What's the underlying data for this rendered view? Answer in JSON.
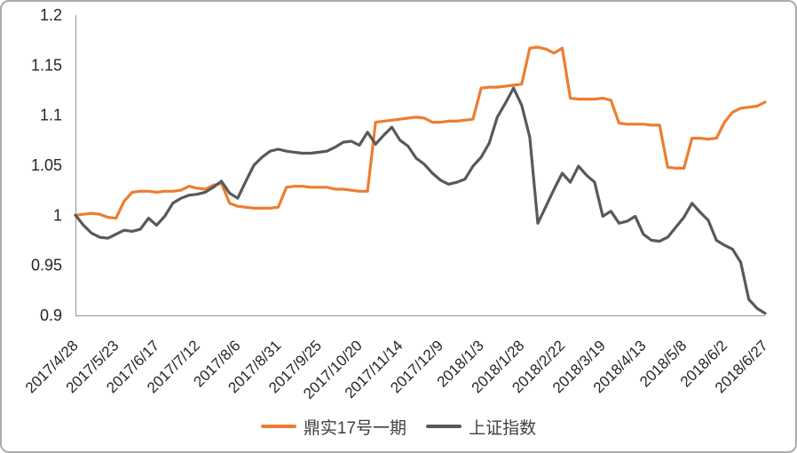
{
  "chart_data": {
    "type": "line",
    "title": "",
    "grid": false,
    "legend_position": "bottom",
    "ylim": [
      0.9,
      1.2
    ],
    "y_ticks": [
      {
        "label": "1.2",
        "value": 1.2
      },
      {
        "label": "1.15",
        "value": 1.15
      },
      {
        "label": "1.1",
        "value": 1.1
      },
      {
        "label": "1.05",
        "value": 1.05
      },
      {
        "label": "1",
        "value": 1.0
      },
      {
        "label": "0.95",
        "value": 0.95
      },
      {
        "label": "0.9",
        "value": 0.9
      }
    ],
    "x_tick_labels": [
      "2017/4/28",
      "2017/5/23",
      "2017/6/17",
      "2017/7/12",
      "2017/8/6",
      "2017/8/31",
      "2017/9/25",
      "2017/10/20",
      "2017/11/14",
      "2017/12/9",
      "2018/1/3",
      "2018/1/28",
      "2018/2/22",
      "2018/3/19",
      "2018/4/13",
      "2018/5/8",
      "2018/6/2",
      "2018/6/27"
    ],
    "points_per_tick_interval": 5,
    "series": [
      {
        "name": "鼎实17号一期",
        "color": "#ED7D31",
        "values": [
          1.0,
          1.001,
          1.002,
          1.001,
          0.998,
          0.997,
          1.014,
          1.023,
          1.024,
          1.024,
          1.023,
          1.024,
          1.024,
          1.025,
          1.029,
          1.027,
          1.026,
          1.03,
          1.032,
          1.012,
          1.009,
          1.008,
          1.007,
          1.007,
          1.007,
          1.008,
          1.028,
          1.029,
          1.029,
          1.028,
          1.028,
          1.028,
          1.026,
          1.026,
          1.025,
          1.024,
          1.024,
          1.093,
          1.094,
          1.095,
          1.096,
          1.097,
          1.098,
          1.097,
          1.093,
          1.093,
          1.094,
          1.094,
          1.095,
          1.096,
          1.127,
          1.128,
          1.128,
          1.129,
          1.13,
          1.131,
          1.167,
          1.168,
          1.166,
          1.162,
          1.167,
          1.117,
          1.116,
          1.116,
          1.116,
          1.117,
          1.115,
          1.092,
          1.091,
          1.091,
          1.091,
          1.09,
          1.09,
          1.048,
          1.047,
          1.047,
          1.077,
          1.077,
          1.076,
          1.077,
          1.093,
          1.103,
          1.107,
          1.108,
          1.109,
          1.113
        ]
      },
      {
        "name": "上证指数",
        "color": "#595959",
        "values": [
          1.0,
          0.99,
          0.982,
          0.978,
          0.977,
          0.981,
          0.985,
          0.984,
          0.986,
          0.997,
          0.99,
          0.999,
          1.012,
          1.017,
          1.02,
          1.021,
          1.023,
          1.028,
          1.034,
          1.022,
          1.017,
          1.034,
          1.05,
          1.058,
          1.064,
          1.066,
          1.064,
          1.063,
          1.062,
          1.062,
          1.063,
          1.064,
          1.068,
          1.073,
          1.074,
          1.07,
          1.083,
          1.071,
          1.08,
          1.088,
          1.075,
          1.069,
          1.057,
          1.051,
          1.042,
          1.035,
          1.031,
          1.033,
          1.036,
          1.049,
          1.058,
          1.072,
          1.098,
          1.112,
          1.127,
          1.11,
          1.078,
          0.992,
          1.009,
          1.026,
          1.042,
          1.033,
          1.049,
          1.04,
          1.033,
          0.999,
          1.004,
          0.992,
          0.994,
          0.999,
          0.981,
          0.975,
          0.974,
          0.978,
          0.988,
          0.998,
          1.012,
          1.003,
          0.995,
          0.975,
          0.97,
          0.966,
          0.953,
          0.916,
          0.907,
          0.902
        ]
      }
    ]
  },
  "colors": {
    "background": "#ffffff",
    "frame_border": "#ababab",
    "axis_line": "#9e9e9e",
    "tick_label": "#262626",
    "legend_text": "#404040"
  }
}
